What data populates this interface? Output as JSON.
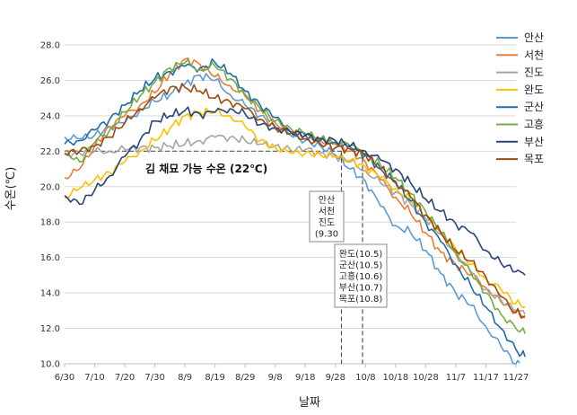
{
  "chart_data": {
    "type": "line",
    "xlabel": "날짜",
    "ylabel": "수온(℃)",
    "ylim": [
      10.0,
      28.0
    ],
    "y_ticks": [
      "10.0",
      "12.0",
      "14.0",
      "16.0",
      "18.0",
      "20.0",
      "22.0",
      "24.0",
      "26.0",
      "28.0"
    ],
    "x_ticks": [
      "6/30",
      "7/10",
      "7/20",
      "7/30",
      "8/9",
      "8/19",
      "8/29",
      "9/8",
      "9/18",
      "9/28",
      "10/8",
      "10/18",
      "10/28",
      "11/7",
      "11/17",
      "11/27"
    ],
    "legend_position": "right",
    "grid": "horizontal",
    "threshold": {
      "value": 22.0,
      "label": "김 채묘 가능 수온 (22℃)"
    },
    "annotations": [
      {
        "lines": [
          "안산",
          "서천",
          "진도",
          "(9.30"
        ],
        "date": "9/30"
      },
      {
        "lines": [
          "완도(10.5)",
          "군산(10.5)",
          "고흥(10.6)",
          "부산(10.7)",
          "목포(10.8)"
        ],
        "date": "10/7"
      }
    ],
    "x": [
      "6/30",
      "7/5",
      "7/10",
      "7/15",
      "7/20",
      "7/25",
      "7/30",
      "8/4",
      "8/9",
      "8/14",
      "8/19",
      "8/24",
      "8/29",
      "9/3",
      "9/8",
      "9/13",
      "9/18",
      "9/23",
      "9/28",
      "10/3",
      "10/8",
      "10/13",
      "10/18",
      "10/23",
      "10/28",
      "11/2",
      "11/7",
      "11/12",
      "11/17",
      "11/22",
      "11/27",
      "11/30"
    ],
    "series": [
      {
        "name": "안산",
        "color": "#5b9bd5",
        "values": [
          22.8,
          22.7,
          22.9,
          23.4,
          23.6,
          24.3,
          24.8,
          25.2,
          25.8,
          26.3,
          26.0,
          25.2,
          24.6,
          24.0,
          23.4,
          22.9,
          22.6,
          22.3,
          21.8,
          21.0,
          20.3,
          18.9,
          17.8,
          17.4,
          16.4,
          15.1,
          14.0,
          13.3,
          12.1,
          11.0,
          10.0,
          9.8
        ]
      },
      {
        "name": "서천",
        "color": "#ed7d31",
        "values": [
          20.5,
          21.0,
          22.3,
          23.4,
          24.0,
          24.6,
          25.3,
          26.4,
          27.2,
          26.9,
          26.2,
          25.7,
          25.1,
          24.3,
          23.6,
          23.1,
          22.9,
          22.6,
          22.4,
          22.0,
          21.4,
          20.4,
          19.4,
          18.5,
          17.4,
          16.3,
          15.6,
          15.0,
          14.3,
          13.5,
          12.9,
          12.6
        ]
      },
      {
        "name": "진도",
        "color": "#a5a5a5",
        "values": [
          21.8,
          21.9,
          22.0,
          22.0,
          22.1,
          22.2,
          22.2,
          22.3,
          22.4,
          22.6,
          22.8,
          22.8,
          22.6,
          22.4,
          22.3,
          22.1,
          22.1,
          21.9,
          21.7,
          21.4,
          20.9,
          20.2,
          19.7,
          19.0,
          18.2,
          17.3,
          16.2,
          15.2,
          14.2,
          13.6,
          13.0,
          12.8
        ]
      },
      {
        "name": "완도",
        "color": "#ffc000",
        "values": [
          19.4,
          19.9,
          20.4,
          20.8,
          21.4,
          22.0,
          22.6,
          23.3,
          24.0,
          24.2,
          24.2,
          24.0,
          23.4,
          22.6,
          22.2,
          21.9,
          21.9,
          21.8,
          21.7,
          21.5,
          21.1,
          20.5,
          19.9,
          19.2,
          18.4,
          17.4,
          16.5,
          15.6,
          14.8,
          14.2,
          13.4,
          13.2
        ]
      },
      {
        "name": "군산",
        "color": "#1f6ba8",
        "values": [
          22.4,
          22.6,
          23.2,
          23.8,
          24.6,
          25.4,
          26.1,
          26.5,
          26.8,
          26.7,
          27.0,
          26.4,
          25.4,
          24.6,
          23.9,
          23.1,
          22.9,
          22.6,
          22.5,
          22.2,
          21.8,
          21.0,
          20.2,
          19.2,
          18.0,
          16.9,
          15.6,
          14.4,
          13.2,
          12.0,
          10.8,
          10.4
        ]
      },
      {
        "name": "고흥",
        "color": "#70ad47",
        "values": [
          22.0,
          21.4,
          22.5,
          23.2,
          24.2,
          25.1,
          25.9,
          26.7,
          27.0,
          26.6,
          26.8,
          26.1,
          25.2,
          24.4,
          23.7,
          23.3,
          23.0,
          22.7,
          22.6,
          22.3,
          21.9,
          21.2,
          20.5,
          19.6,
          18.6,
          17.4,
          16.3,
          15.1,
          14.0,
          12.8,
          12.0,
          11.7
        ]
      },
      {
        "name": "부산",
        "color": "#264478",
        "values": [
          19.5,
          19.0,
          19.8,
          20.6,
          21.7,
          22.6,
          23.7,
          24.0,
          24.3,
          24.1,
          24.2,
          24.4,
          24.1,
          23.5,
          23.3,
          23.1,
          22.9,
          22.7,
          22.6,
          22.3,
          22.0,
          21.5,
          21.0,
          20.2,
          19.3,
          18.6,
          17.9,
          17.4,
          16.4,
          15.7,
          15.2,
          15.0
        ]
      },
      {
        "name": "목포",
        "color": "#9e480e",
        "values": [
          21.9,
          22.0,
          22.3,
          22.8,
          23.6,
          24.4,
          25.0,
          25.6,
          25.6,
          25.4,
          25.0,
          24.8,
          24.4,
          23.8,
          23.3,
          23.0,
          22.7,
          22.4,
          22.2,
          22.1,
          21.8,
          21.0,
          20.3,
          19.4,
          18.4,
          17.4,
          16.4,
          15.8,
          14.9,
          13.8,
          12.9,
          12.7
        ]
      }
    ]
  }
}
